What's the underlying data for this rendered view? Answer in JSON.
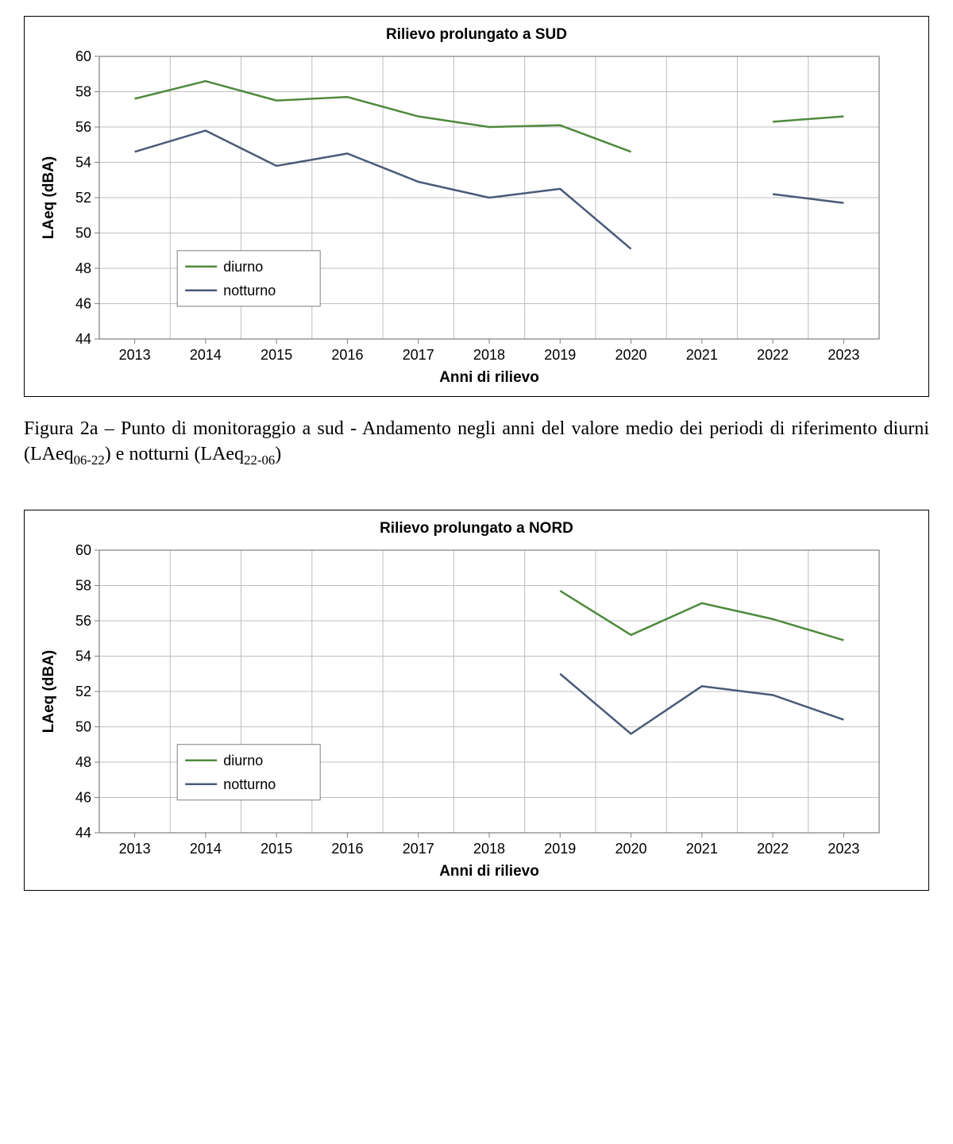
{
  "chart_a": {
    "type": "line",
    "title": "Rilievo prolungato a SUD",
    "xlabel": "Anni di rilievo",
    "ylabel": "LAeq (dBA)",
    "title_fontsize": 19,
    "label_fontsize": 19,
    "tick_fontsize": 18,
    "background_color": "#ffffff",
    "grid_color": "#bfbfbf",
    "border_color": "#7f7f7f",
    "outer_border_color": "#000000",
    "line_width": 2.5,
    "xlim": [
      2012.5,
      2023.5
    ],
    "ylim": [
      44,
      60
    ],
    "xtick_step": 1,
    "ytick_step": 2,
    "x_categories": [
      2013,
      2014,
      2015,
      2016,
      2017,
      2018,
      2019,
      2020,
      2021,
      2022,
      2023
    ],
    "series": [
      {
        "name": "diurno",
        "color": "#4f8a3d",
        "segments": [
          [
            [
              2013,
              57.6
            ],
            [
              2014,
              58.6
            ],
            [
              2015,
              57.5
            ],
            [
              2016,
              57.7
            ],
            [
              2017,
              56.6
            ],
            [
              2018,
              56.0
            ],
            [
              2019,
              56.1
            ],
            [
              2020,
              54.6
            ]
          ],
          [
            [
              2022,
              56.3
            ],
            [
              2023,
              56.6
            ]
          ]
        ]
      },
      {
        "name": "notturno",
        "color": "#4a5a78",
        "segments": [
          [
            [
              2013,
              54.6
            ],
            [
              2014,
              55.8
            ],
            [
              2015,
              53.8
            ],
            [
              2016,
              54.5
            ],
            [
              2017,
              52.9
            ],
            [
              2018,
              52.0
            ],
            [
              2019,
              52.5
            ],
            [
              2020,
              49.1
            ]
          ],
          [
            [
              2022,
              52.2
            ],
            [
              2023,
              51.7
            ]
          ]
        ]
      }
    ],
    "legend": {
      "position": "lower-left",
      "x": 2013.6,
      "y_top": 49.0,
      "border_color": "#7f7f7f",
      "background_color": "#ffffff"
    }
  },
  "caption_a": {
    "prefix": "Figura 2a – Punto di monitoraggio a sud - Andamento negli anni del valore medio dei periodi di riferimento diurni (LAeq",
    "sub1": "06-22",
    "mid": ") e notturni (LAeq",
    "sub2": "22-06",
    "suffix": ")"
  },
  "chart_b": {
    "type": "line",
    "title": "Rilievo prolungato a NORD",
    "xlabel": "Anni di rilievo",
    "ylabel": "LAeq (dBA)",
    "title_fontsize": 19,
    "label_fontsize": 19,
    "tick_fontsize": 18,
    "background_color": "#ffffff",
    "grid_color": "#bfbfbf",
    "border_color": "#7f7f7f",
    "outer_border_color": "#000000",
    "line_width": 2.5,
    "xlim": [
      2012.5,
      2023.5
    ],
    "ylim": [
      44,
      60
    ],
    "xtick_step": 1,
    "ytick_step": 2,
    "x_categories": [
      2013,
      2014,
      2015,
      2016,
      2017,
      2018,
      2019,
      2020,
      2021,
      2022,
      2023
    ],
    "series": [
      {
        "name": "diurno",
        "color": "#4f8a3d",
        "segments": [
          [
            [
              2019,
              57.7
            ],
            [
              2020,
              55.2
            ],
            [
              2021,
              57.0
            ],
            [
              2022,
              56.1
            ],
            [
              2023,
              54.9
            ]
          ]
        ]
      },
      {
        "name": "notturno",
        "color": "#4a5a78",
        "segments": [
          [
            [
              2019,
              53.0
            ],
            [
              2020,
              49.6
            ],
            [
              2021,
              52.3
            ],
            [
              2022,
              51.8
            ],
            [
              2023,
              50.4
            ]
          ]
        ]
      }
    ],
    "legend": {
      "position": "lower-left",
      "x": 2013.6,
      "y_top": 49.0,
      "border_color": "#7f7f7f",
      "background_color": "#ffffff"
    }
  }
}
